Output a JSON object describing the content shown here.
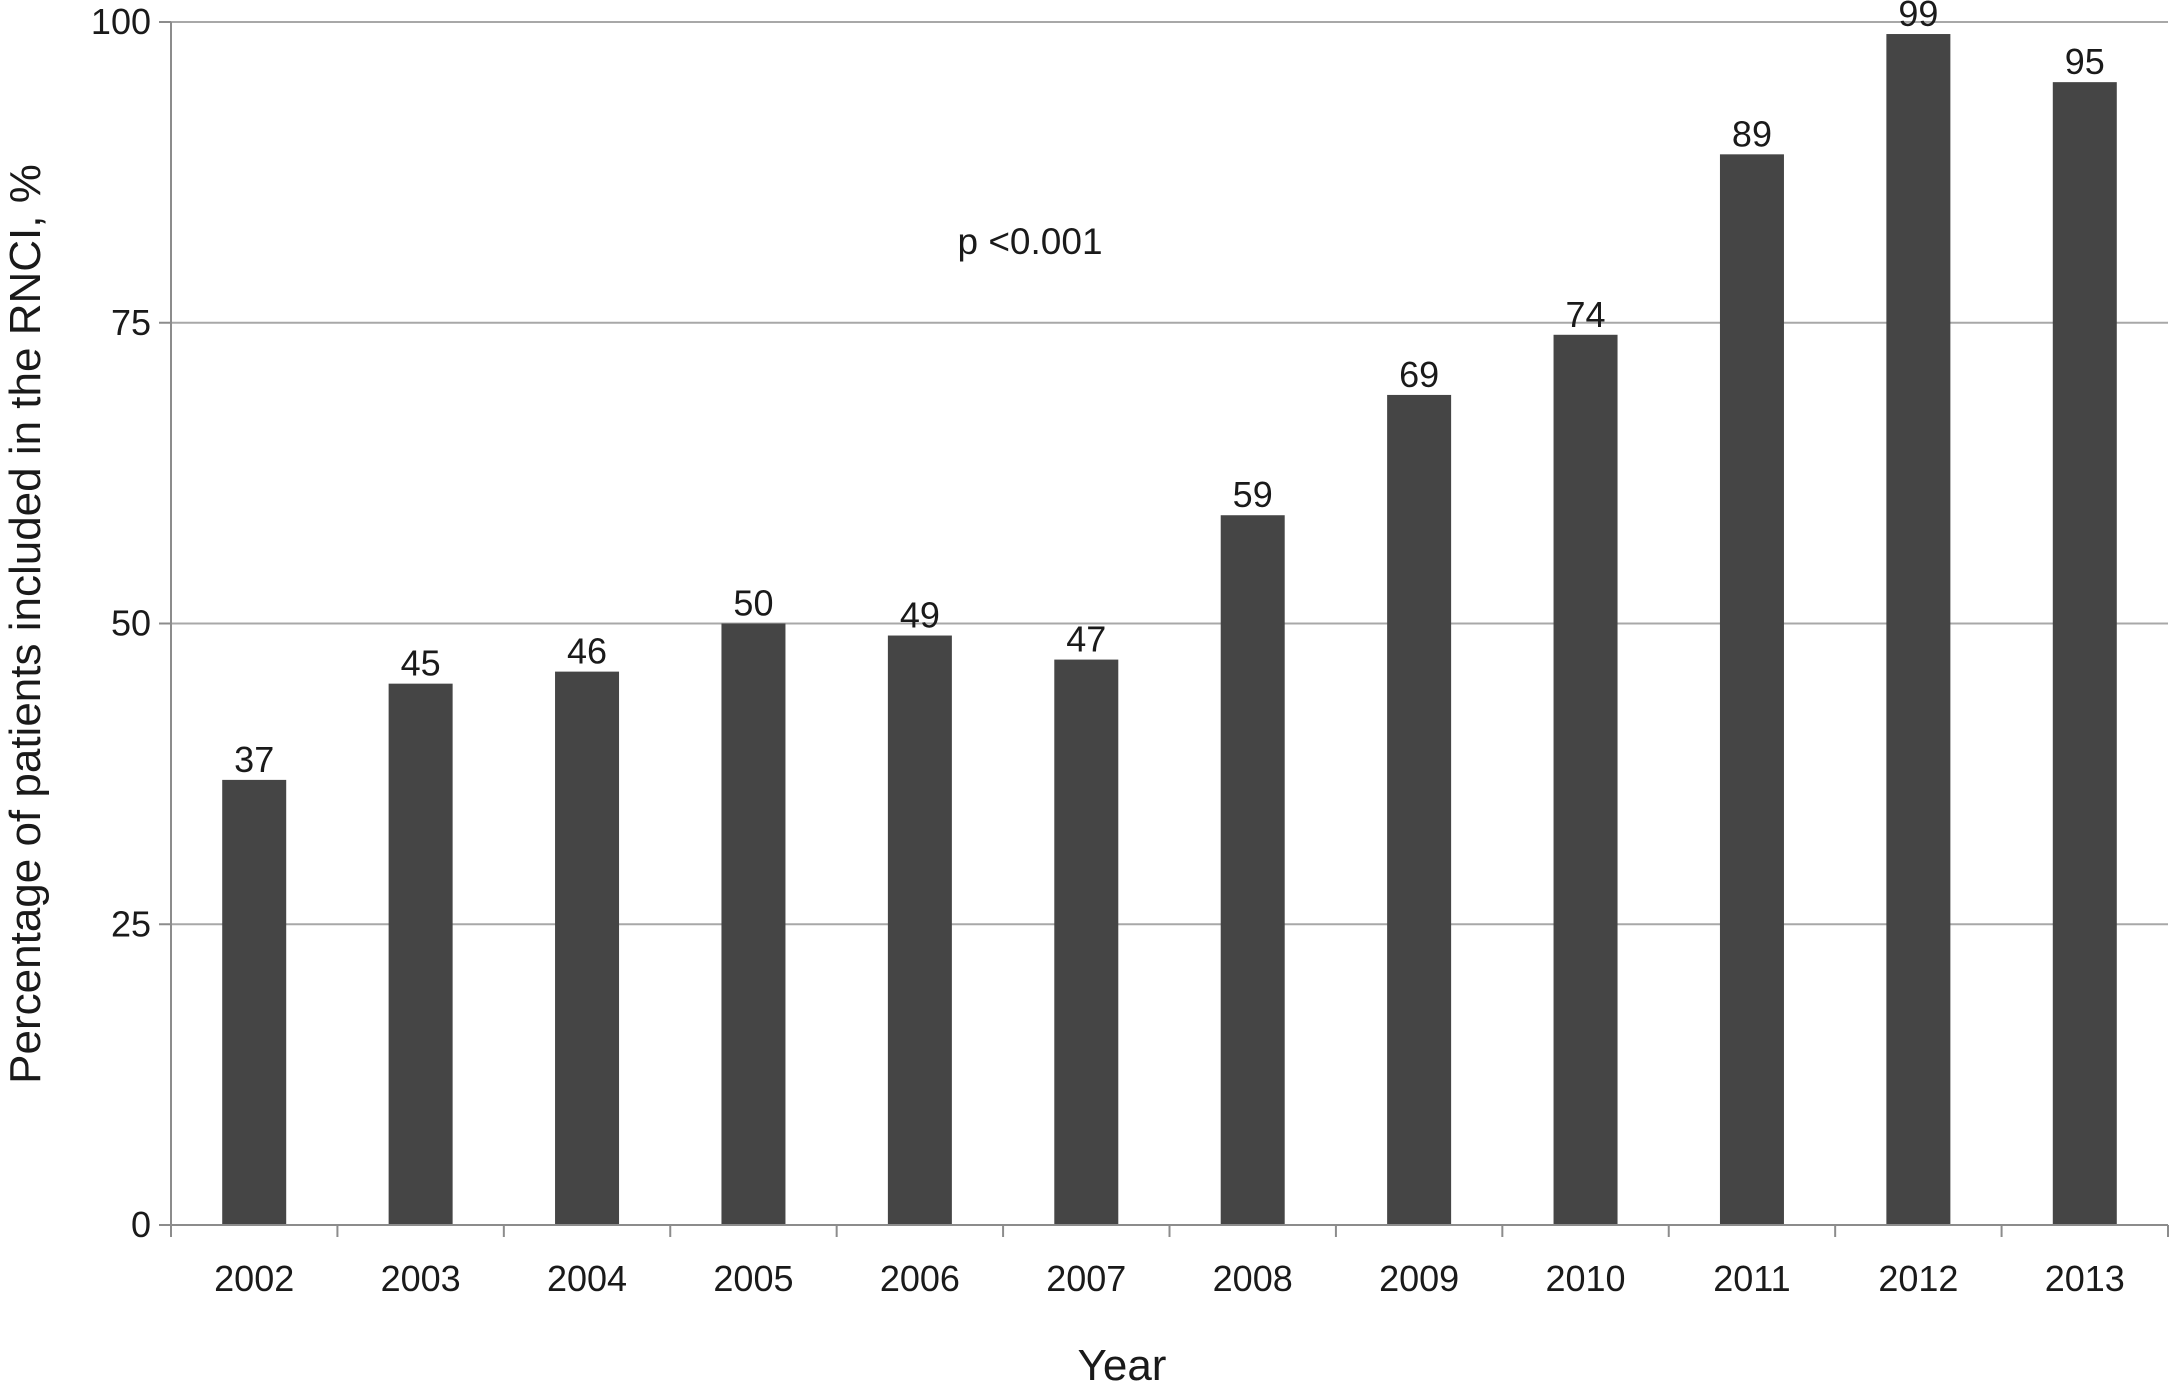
{
  "chart_data": {
    "type": "bar",
    "title": "",
    "xlabel": "Year",
    "ylabel": "Percentage of patients included in the RNCI, %",
    "categories": [
      "2002",
      "2003",
      "2004",
      "2005",
      "2006",
      "2007",
      "2008",
      "2009",
      "2010",
      "2011",
      "2012",
      "2013"
    ],
    "values": [
      37,
      45,
      46,
      50,
      49,
      47,
      59,
      69,
      74,
      89,
      99,
      95
    ],
    "data_labels": [
      "37",
      "45",
      "46",
      "50",
      "49",
      "47",
      "59",
      "69",
      "74",
      "89",
      "99",
      "95"
    ],
    "ylim": [
      0,
      100
    ],
    "yticks": [
      0,
      25,
      50,
      75,
      100
    ],
    "ytick_labels": [
      "0",
      "25",
      "50",
      "75",
      "100"
    ],
    "grid": true,
    "legend": "none",
    "annotation": "p <0.001",
    "colors": {
      "bar": "#454545",
      "grid": "#a8a8a8",
      "axis": "#8c8c8c"
    }
  }
}
